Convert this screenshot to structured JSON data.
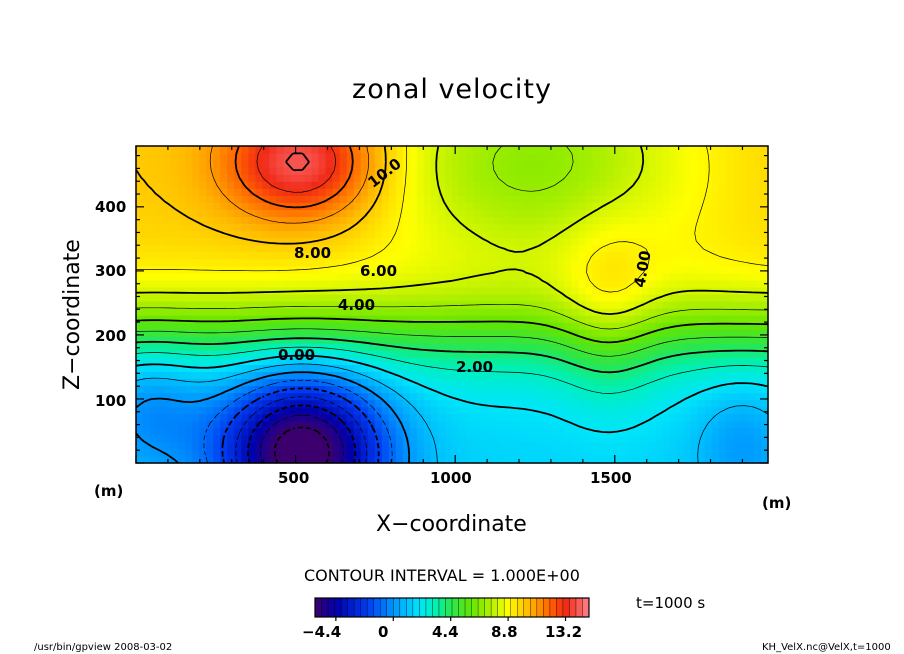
{
  "chart_data": {
    "type": "heatmap",
    "title": "zonal velocity",
    "xlabel": "X−coordinate",
    "ylabel": "Z−coordinate",
    "x_unit": "(m)",
    "y_unit": "(m)",
    "xlim": [
      0,
      1980
    ],
    "ylim": [
      0,
      495
    ],
    "x_ticks": [
      "500",
      "1000",
      "1500"
    ],
    "y_ticks": [
      "100",
      "200",
      "300",
      "400"
    ],
    "x_tick_values": [
      500,
      1000,
      1500
    ],
    "y_tick_values": [
      100,
      200,
      300,
      400
    ],
    "contour_labels": [
      "10.0",
      "8.00",
      "6.00",
      "4.00",
      "4.00",
      "2.00",
      "0.00"
    ],
    "contour_interval_text": "CONTOUR INTERVAL = 1.000E+00",
    "time_text": "t=1000 s",
    "colorbar": {
      "min": -6.0,
      "max": 15.0,
      "tick_labels": [
        "−4.4",
        "0",
        "4.4",
        "8.8",
        "13.2"
      ],
      "tick_values": [
        -4.4,
        0,
        4.4,
        8.8,
        13.2
      ]
    },
    "footer_left": "/usr/bin/gpview  2008-03-02",
    "footer_right": "KH_VelX.nc@VelX,t=1000"
  }
}
